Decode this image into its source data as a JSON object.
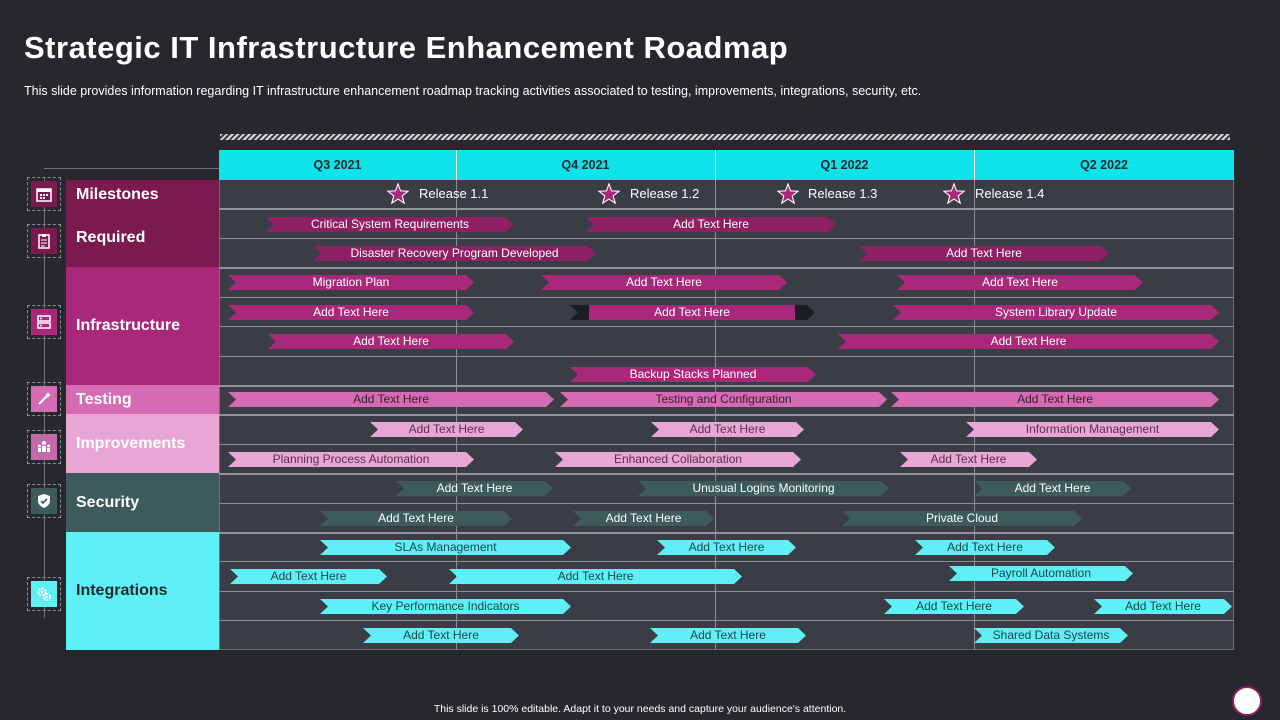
{
  "title": "Strategic IT Infrastructure Enhancement Roadmap",
  "subtitle": "This slide provides  information  regarding  IT  infrastructure  enhancement  roadmap  tracking  activities  associated  to  testing,  improvements,  integrations,  security,  etc.",
  "footer": "This slide is 100% editable.  Adapt it to your needs and capture your audience's attention.",
  "quarters": [
    "Q3 2021",
    "Q4 2021",
    "Q1 2022",
    "Q2 2022"
  ],
  "categories": [
    {
      "label": "Milestones",
      "icon": "calendar-icon",
      "color": "#7a1a4f"
    },
    {
      "label": "Required",
      "icon": "clipboard-icon",
      "color": "#7a1a4f"
    },
    {
      "label": "Infrastructure",
      "icon": "server-icon",
      "color": "#a9287a"
    },
    {
      "label": "Testing",
      "icon": "magic-wand-icon",
      "color": "#d46bb3"
    },
    {
      "label": "Improvements",
      "icon": "people-icon",
      "color": "#e8a6d4"
    },
    {
      "label": "Security",
      "icon": "shield-icon",
      "color": "#3d5a5c"
    },
    {
      "label": "Integrations",
      "icon": "gears-icon",
      "color": "#5ef0f5"
    }
  ],
  "milestones": [
    "Release  1.1",
    "Release  1.2",
    "Release  1.3",
    "Release  1.4"
  ],
  "bars": {
    "required": [
      "Critical System Requirements",
      "Add Text Here",
      "Disaster Recovery Program Developed",
      "Add Text Here"
    ],
    "infrastructure": [
      "Migration Plan",
      "Add Text Here",
      "Add Text Here",
      "Add Text Here",
      "Add Text Here",
      "System Library Update",
      "Add Text Here",
      "Add Text Here",
      "Backup Stacks Planned"
    ],
    "testing": [
      "Add Text Here",
      "Testing and Configuration",
      "Add Text Here"
    ],
    "improvements": [
      "Add Text Here",
      "Add Text Here",
      "Information Management",
      "Planning Process Automation",
      "Enhanced Collaboration",
      "Add Text Here"
    ],
    "security": [
      "Add Text Here",
      "Unusual Logins Monitoring",
      "Add Text Here",
      "Add Text Here",
      "Add Text Here",
      "Private Cloud"
    ],
    "integrations": [
      "SLAs Management",
      "Add Text Here",
      "Add Text Here",
      "Add Text Here",
      "Add Text Here",
      "Payroll Automation",
      "Key Performance Indicators",
      "Add Text Here",
      "Add Text Here",
      "Add Text Here",
      "Add Text Here",
      "Shared Data Systems"
    ]
  }
}
